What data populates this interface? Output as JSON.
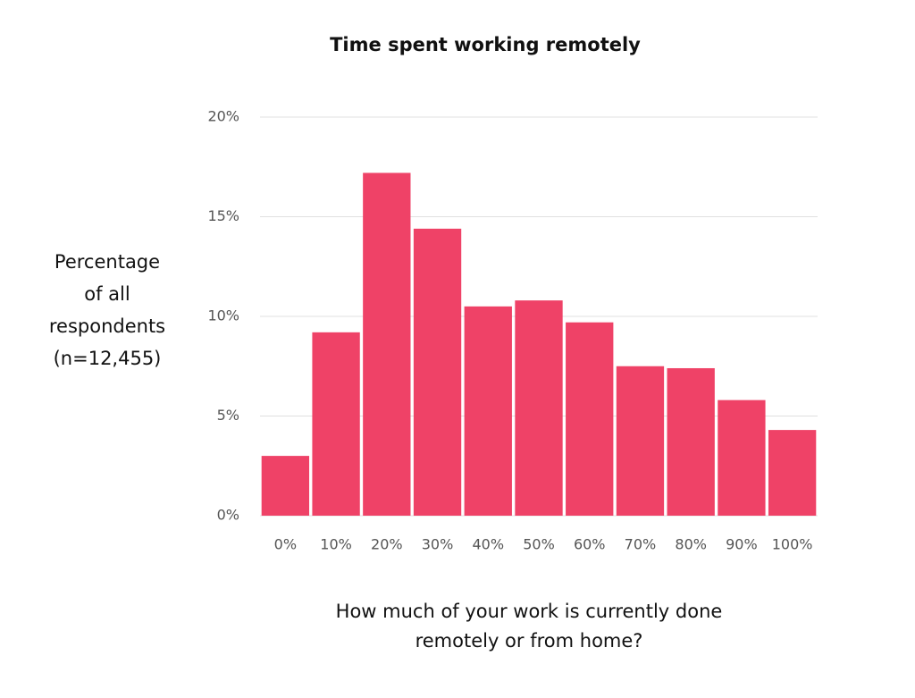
{
  "chart_data": {
    "type": "bar",
    "title": "Time spent working remotely",
    "y_label": [
      "Percentage",
      "of all",
      "respondents",
      "(n=12,455)"
    ],
    "x_label": [
      "How much of your work is currently done",
      "remotely or from home?"
    ],
    "categories": [
      "0%",
      "10%",
      "20%",
      "30%",
      "40%",
      "50%",
      "60%",
      "70%",
      "80%",
      "90%",
      "100%"
    ],
    "values": [
      3.0,
      9.2,
      17.2,
      14.4,
      10.5,
      10.8,
      9.7,
      7.5,
      7.4,
      5.8,
      4.3
    ],
    "color": "#ef4267",
    "ylim": [
      0,
      20
    ],
    "yticks": [
      {
        "value": 0,
        "label": "0%"
      },
      {
        "value": 5,
        "label": "5%"
      },
      {
        "value": 10,
        "label": "10%"
      },
      {
        "value": 15,
        "label": "15%"
      },
      {
        "value": 20,
        "label": "20%"
      }
    ],
    "grid": true
  }
}
